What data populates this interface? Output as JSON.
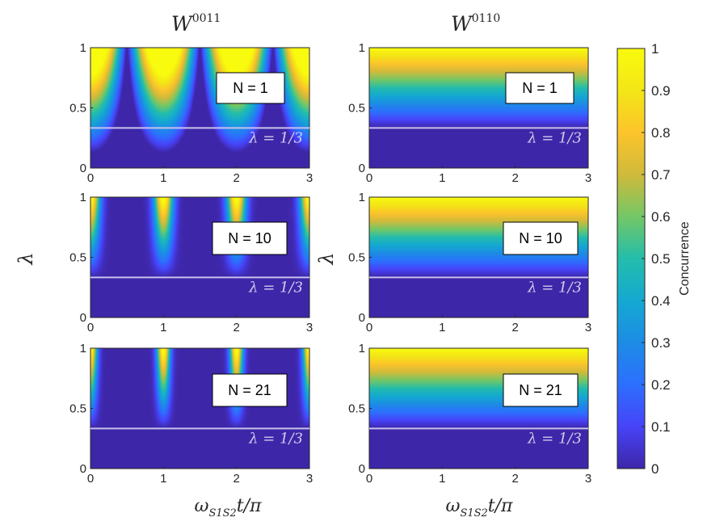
{
  "chart_data": [
    {
      "type": "heatmap",
      "id": "W0011-N1",
      "column_title": {
        "base": "W",
        "sup": "0011"
      },
      "box_label": "N = 1",
      "n": 1,
      "line_label": "λ = 1/3",
      "line_value": 0.3333,
      "xlim": [
        0,
        3
      ],
      "ylim": [
        0,
        1
      ],
      "xticks": [
        "0",
        "1",
        "2",
        "3"
      ],
      "yticks": [
        "0",
        "0.5",
        "1"
      ],
      "ylabel": "",
      "xlabel": ""
    },
    {
      "type": "heatmap",
      "id": "W0110-N1",
      "column_title": {
        "base": "W",
        "sup": "0110"
      },
      "box_label": "N = 1",
      "n": 1,
      "line_label": "λ = 1/3",
      "line_value": 0.3333,
      "xlim": [
        0,
        3
      ],
      "ylim": [
        0,
        1
      ],
      "xticks": [
        "0",
        "1",
        "2",
        "3"
      ],
      "yticks": [
        "0",
        "0.5",
        "1"
      ],
      "ylabel": "",
      "xlabel": ""
    },
    {
      "type": "heatmap",
      "id": "W0011-N10",
      "box_label": "N = 10",
      "n": 10,
      "line_label": "λ = 1/3",
      "line_value": 0.3333,
      "xlim": [
        0,
        3
      ],
      "ylim": [
        0,
        1
      ],
      "xticks": [
        "0",
        "1",
        "2",
        "3"
      ],
      "yticks": [
        "0",
        "0.5",
        "1"
      ],
      "ylabel": "λ",
      "xlabel": ""
    },
    {
      "type": "heatmap",
      "id": "W0110-N10",
      "box_label": "N = 10",
      "n": 10,
      "line_label": "λ = 1/3",
      "line_value": 0.3333,
      "xlim": [
        0,
        3
      ],
      "ylim": [
        0,
        1
      ],
      "xticks": [
        "0",
        "1",
        "2",
        "3"
      ],
      "yticks": [
        "0",
        "0.5",
        "1"
      ],
      "ylabel": "λ",
      "xlabel": ""
    },
    {
      "type": "heatmap",
      "id": "W0011-N21",
      "box_label": "N = 21",
      "n": 21,
      "line_label": "λ = 1/3",
      "line_value": 0.3333,
      "xlim": [
        0,
        3
      ],
      "ylim": [
        0,
        1
      ],
      "xticks": [
        "0",
        "1",
        "2",
        "3"
      ],
      "yticks": [
        "0",
        "0.5",
        "1"
      ],
      "ylabel": "",
      "xlabel": {
        "base": "ω",
        "sub": "S1S2",
        "tail": "t/π"
      }
    },
    {
      "type": "heatmap",
      "id": "W0110-N21",
      "box_label": "N = 21",
      "n": 21,
      "line_label": "λ = 1/3",
      "line_value": 0.3333,
      "xlim": [
        0,
        3
      ],
      "ylim": [
        0,
        1
      ],
      "xticks": [
        "0",
        "1",
        "2",
        "3"
      ],
      "yticks": [
        "0",
        "0.5",
        "1"
      ],
      "ylabel": "",
      "xlabel": {
        "base": "ω",
        "sub": "S1S2",
        "tail": "t/π"
      }
    }
  ],
  "colorbar": {
    "label": "Concurrence",
    "range": [
      0,
      1
    ],
    "ticks": [
      "0",
      "0.1",
      "0.2",
      "0.3",
      "0.4",
      "0.5",
      "0.6",
      "0.7",
      "0.8",
      "0.9",
      "1"
    ],
    "colormap": [
      "#3e26a8",
      "#4743f8",
      "#2d6ffe",
      "#1d8ce5",
      "#14a9d1",
      "#24bdab",
      "#74c766",
      "#d0ba3b",
      "#fcc42b",
      "#f3e616",
      "#f9fb0e"
    ]
  }
}
